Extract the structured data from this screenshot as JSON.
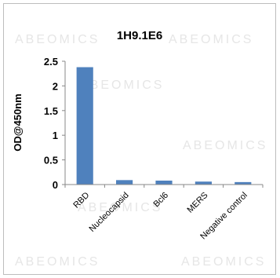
{
  "watermark": "ABEOMICS",
  "colors": {
    "bar": "#4f81bd",
    "axis": "#888888",
    "watermark": "#e6e6e6"
  },
  "chart_data": {
    "type": "bar",
    "title": "1H9.1E6",
    "xlabel": "",
    "ylabel": "OD@450nm",
    "categories": [
      "RBD",
      "Nucleocapsid",
      "Bcl6",
      "MERS",
      "Negative control"
    ],
    "values": [
      2.38,
      0.09,
      0.08,
      0.06,
      0.05
    ],
    "ylim": [
      0,
      2.5
    ],
    "yticks": [
      "0",
      "0.5",
      "1",
      "1.5",
      "2",
      "2.5"
    ],
    "grid": false,
    "legend": "none"
  }
}
